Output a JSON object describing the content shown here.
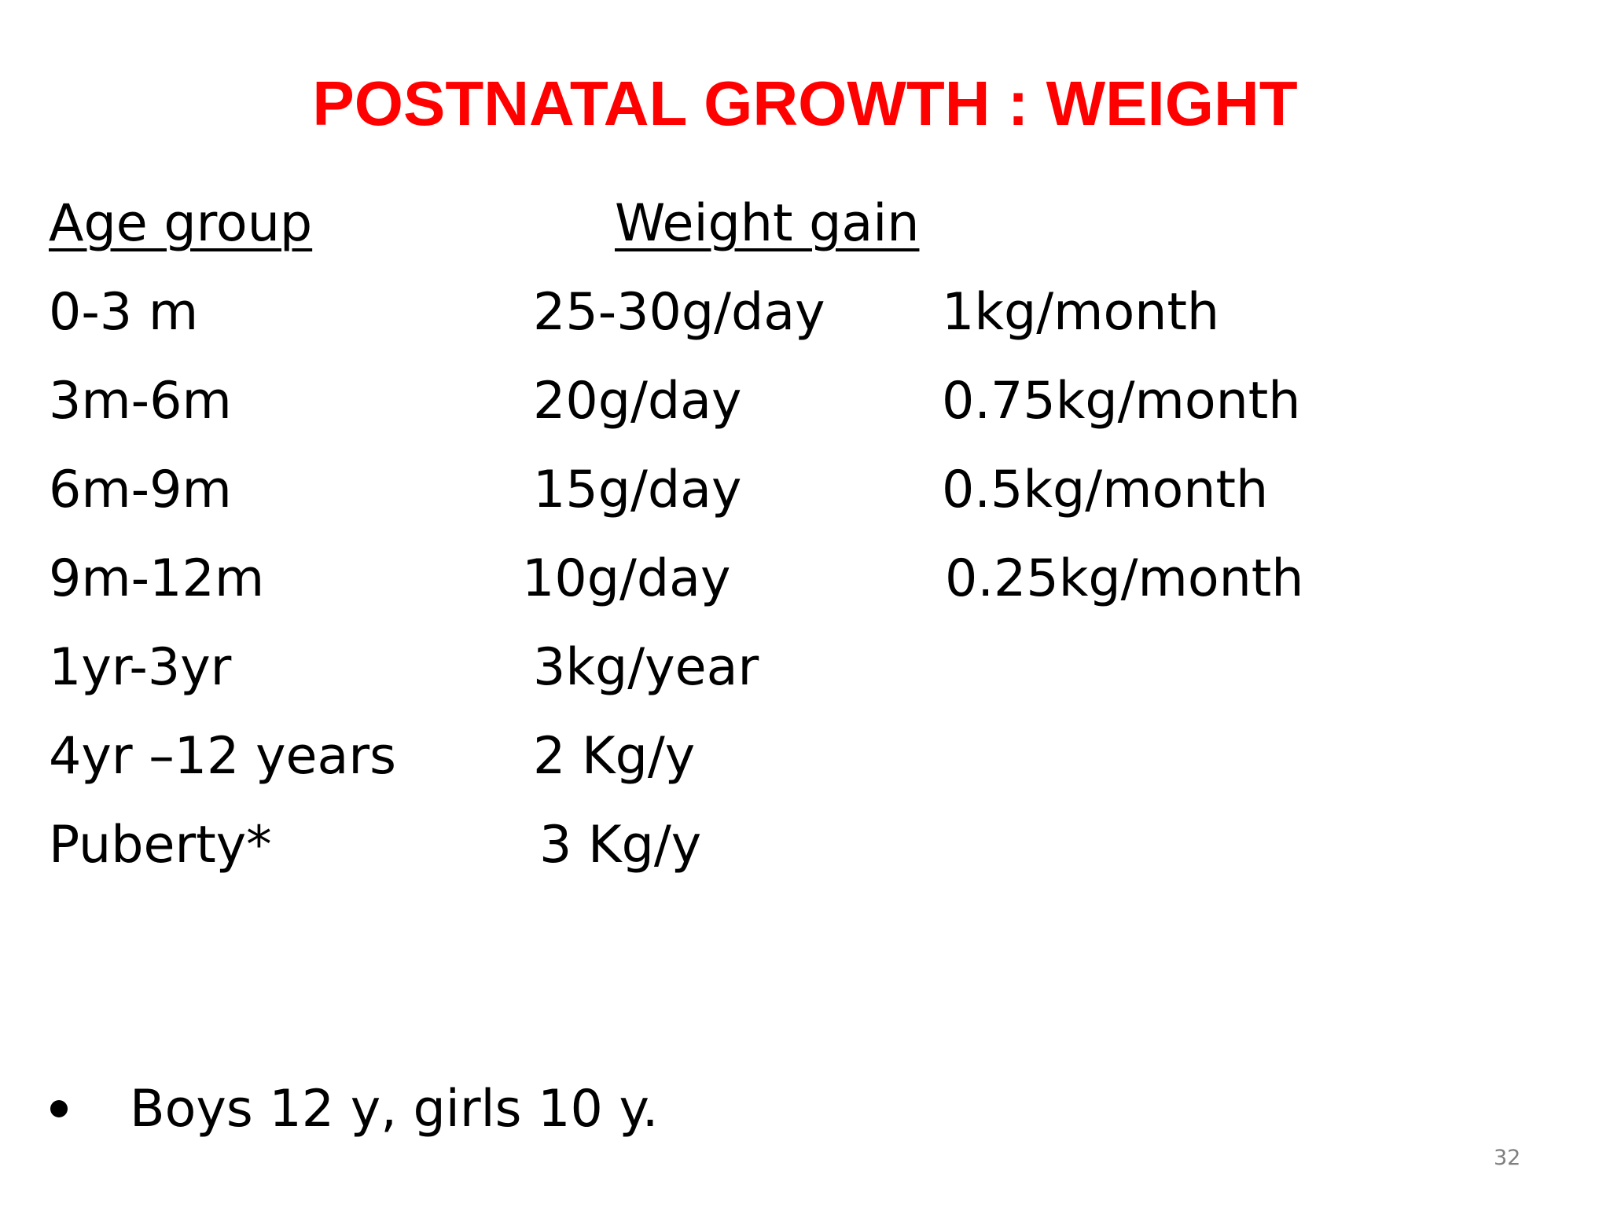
{
  "slide": {
    "title": "POSTNATAL GROWTH : WEIGHT",
    "title_color": "#ff0000",
    "table": {
      "headers": {
        "age_group": "Age group",
        "weight_gain": "Weight gain"
      },
      "rows": [
        {
          "age": "0-3 m",
          "per_unit": "25-30g/day",
          "per_month": "1kg/month"
        },
        {
          "age": "3m-6m",
          "per_unit": "20g/day",
          "per_month": "0.75kg/month"
        },
        {
          "age": "6m-9m",
          "per_unit": "15g/day",
          "per_month": "0.5kg/month"
        },
        {
          "age": "9m-12m",
          "per_unit": "10g/day",
          "per_month": "0.25kg/month"
        },
        {
          "age": "1yr-3yr",
          "per_unit": "3kg/year",
          "per_month": ""
        },
        {
          "age": "4yr –12 years",
          "per_unit": "2 Kg/y",
          "per_month": ""
        },
        {
          "age": "Puberty*",
          "per_unit": "3 Kg/y",
          "per_month": ""
        }
      ]
    },
    "bullet_note": "Boys 12 y, girls 10 y.",
    "page_number": "32"
  }
}
